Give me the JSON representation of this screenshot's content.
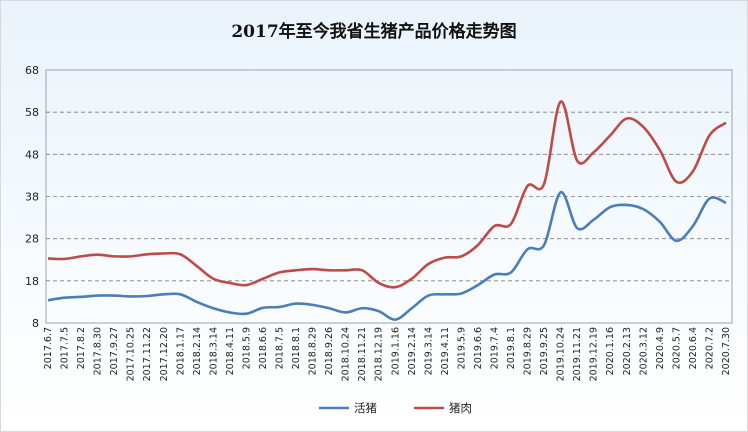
{
  "chart_data": {
    "type": "line",
    "title": "2017年至今我省生猪产品价格走势图",
    "xlabel": "",
    "ylabel": "",
    "ylim": [
      8,
      68
    ],
    "yticks": [
      8,
      18,
      28,
      38,
      48,
      58,
      68
    ],
    "grid": true,
    "legend_position": "bottom-center",
    "x_tick_labels": [
      "2017.6.7",
      "2017.7.5",
      "2017.8.2",
      "2017.8.30",
      "2017.9.27",
      "2017.10.25",
      "2017.11.22",
      "2017.12.20",
      "2018.1.17",
      "2018.2.14",
      "2018.3.14",
      "2018.4.11",
      "2018.5.9",
      "2018.6.6",
      "2018.7.5",
      "2018.8.1",
      "2018.8.29",
      "2018.9.26",
      "2018.10.24",
      "2018.11.21",
      "2018.12.19",
      "2019.1.16",
      "2019.2.14",
      "2019.3.14",
      "2019.4.11",
      "2019.5.9",
      "2019.6.6",
      "2019.7.4",
      "2019.8.1",
      "2019.8.29",
      "2019.9.25",
      "2019.10.24",
      "2019.11.21",
      "2019.12.19",
      "2020.1.16",
      "2020.2.13",
      "2020.3.12",
      "2020.4.9",
      "2020.5.7",
      "2020.6.4",
      "2020.7.2",
      "2020.7.30"
    ],
    "series": [
      {
        "name": "活猪",
        "color": "#4a7ebb",
        "values": [
          13.4,
          14.0,
          14.2,
          14.5,
          14.5,
          14.3,
          14.4,
          14.8,
          14.8,
          13.0,
          11.5,
          10.5,
          10.2,
          11.6,
          11.8,
          12.6,
          12.3,
          11.5,
          10.5,
          11.5,
          10.8,
          8.8,
          11.5,
          14.5,
          14.8,
          15.0,
          17.0,
          19.5,
          20.0,
          25.5,
          26.5,
          39.0,
          30.5,
          32.5,
          35.5,
          36.0,
          35.0,
          32.0,
          27.5,
          31.0,
          37.5,
          36.5
        ]
      },
      {
        "name": "猪肉",
        "color": "#be4b48",
        "values": [
          23.3,
          23.2,
          23.8,
          24.2,
          23.8,
          23.8,
          24.3,
          24.5,
          24.3,
          21.5,
          18.5,
          17.5,
          17.0,
          18.5,
          20.0,
          20.5,
          20.8,
          20.5,
          20.5,
          20.5,
          17.5,
          16.5,
          18.5,
          22.0,
          23.5,
          23.8,
          26.5,
          31.0,
          31.5,
          40.5,
          41.0,
          60.5,
          46.5,
          48.5,
          52.5,
          56.5,
          54.5,
          49.0,
          41.5,
          44.0,
          52.5,
          55.5
        ]
      }
    ]
  }
}
